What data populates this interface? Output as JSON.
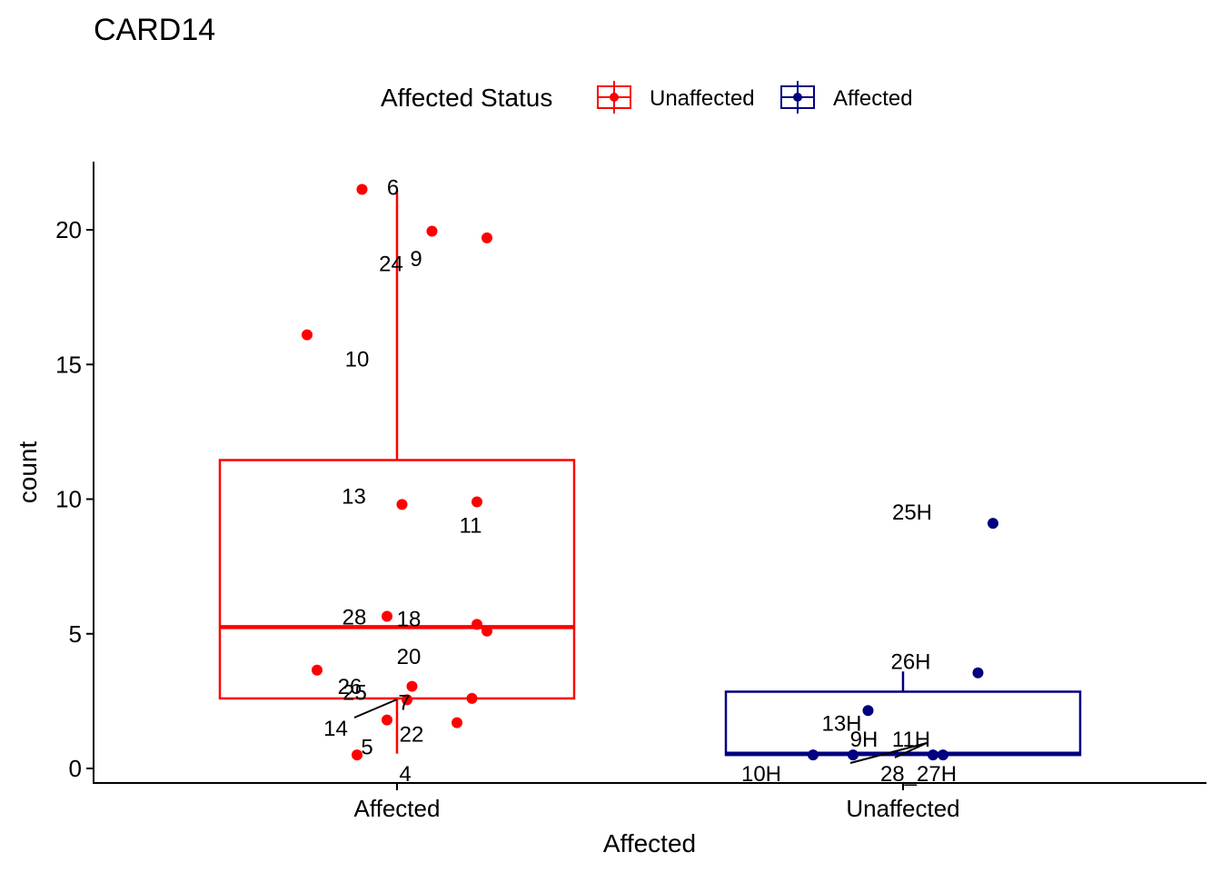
{
  "chart_data": {
    "type": "boxplot",
    "title": "CARD14",
    "xlabel": "Affected",
    "ylabel": "count",
    "ylim": [
      -0.5,
      22.5
    ],
    "yticks": [
      0,
      5,
      10,
      15,
      20
    ],
    "categories": [
      "Affected",
      "Unaffected"
    ],
    "grid": false,
    "legend": {
      "position": "top",
      "title": "Affected Status",
      "entries": [
        {
          "label": "Unaffected",
          "color": "#FF0000"
        },
        {
          "label": "Affected",
          "color": "#000080"
        }
      ]
    },
    "boxes": [
      {
        "category": "Affected",
        "color": "#FF0000",
        "q1": 2.6,
        "median": 5.25,
        "q3": 11.45,
        "whisker_low": 0.55,
        "whisker_high": 21.45
      },
      {
        "category": "Unaffected",
        "color": "#000080",
        "q1": 0.5,
        "median": 0.55,
        "q3": 2.85,
        "whisker_low": 0.5,
        "whisker_high": 3.6
      }
    ],
    "points": [
      {
        "group": "Affected",
        "label": "6",
        "y": 21.5,
        "xoff": -0.07
      },
      {
        "group": "Affected",
        "label": "24",
        "y": 19.95,
        "xoff": 0.07
      },
      {
        "group": "Affected",
        "label": "9",
        "y": 19.7,
        "xoff": 0.18
      },
      {
        "group": "Affected",
        "label": "10",
        "y": 16.1,
        "xoff": -0.18
      },
      {
        "group": "Affected",
        "label": "13",
        "y": 9.8,
        "xoff": 0.01
      },
      {
        "group": "Affected",
        "label": "11",
        "y": 9.9,
        "xoff": 0.16
      },
      {
        "group": "Affected",
        "label": "28",
        "y": 5.65,
        "xoff": -0.02
      },
      {
        "group": "Affected",
        "label": "18",
        "y": 5.35,
        "xoff": 0.16
      },
      {
        "group": "Affected",
        "label": "20",
        "y": 5.1,
        "xoff": 0.18
      },
      {
        "group": "Affected",
        "label": "26",
        "y": 3.65,
        "xoff": -0.16
      },
      {
        "group": "Affected",
        "label": "25",
        "y": 3.05,
        "xoff": 0.03
      },
      {
        "group": "Affected",
        "label": "7",
        "y": 2.55,
        "xoff": 0.02
      },
      {
        "group": "Affected",
        "label": "14",
        "y": 2.6,
        "xoff": 0.15
      },
      {
        "group": "Affected",
        "label": "22",
        "y": 1.7,
        "xoff": 0.12
      },
      {
        "group": "Affected",
        "label": "5",
        "y": 1.8,
        "xoff": -0.02
      },
      {
        "group": "Affected",
        "label": "4",
        "y": 0.5,
        "xoff": -0.08
      },
      {
        "group": "Unaffected",
        "label": "25H",
        "y": 9.1,
        "xoff": 0.18
      },
      {
        "group": "Unaffected",
        "label": "26H",
        "y": 3.55,
        "xoff": 0.15
      },
      {
        "group": "Unaffected",
        "label": "13H",
        "y": 2.15,
        "xoff": -0.07
      },
      {
        "group": "Unaffected",
        "label": "9H",
        "y": 0.5,
        "xoff": -0.1
      },
      {
        "group": "Unaffected",
        "label": "10H",
        "y": 0.5,
        "xoff": -0.18
      },
      {
        "group": "Unaffected",
        "label": "11H",
        "y": 0.5,
        "xoff": 0.06
      },
      {
        "group": "Unaffected",
        "label": "28_27H",
        "y": 0.5,
        "xoff": 0.08
      }
    ]
  }
}
